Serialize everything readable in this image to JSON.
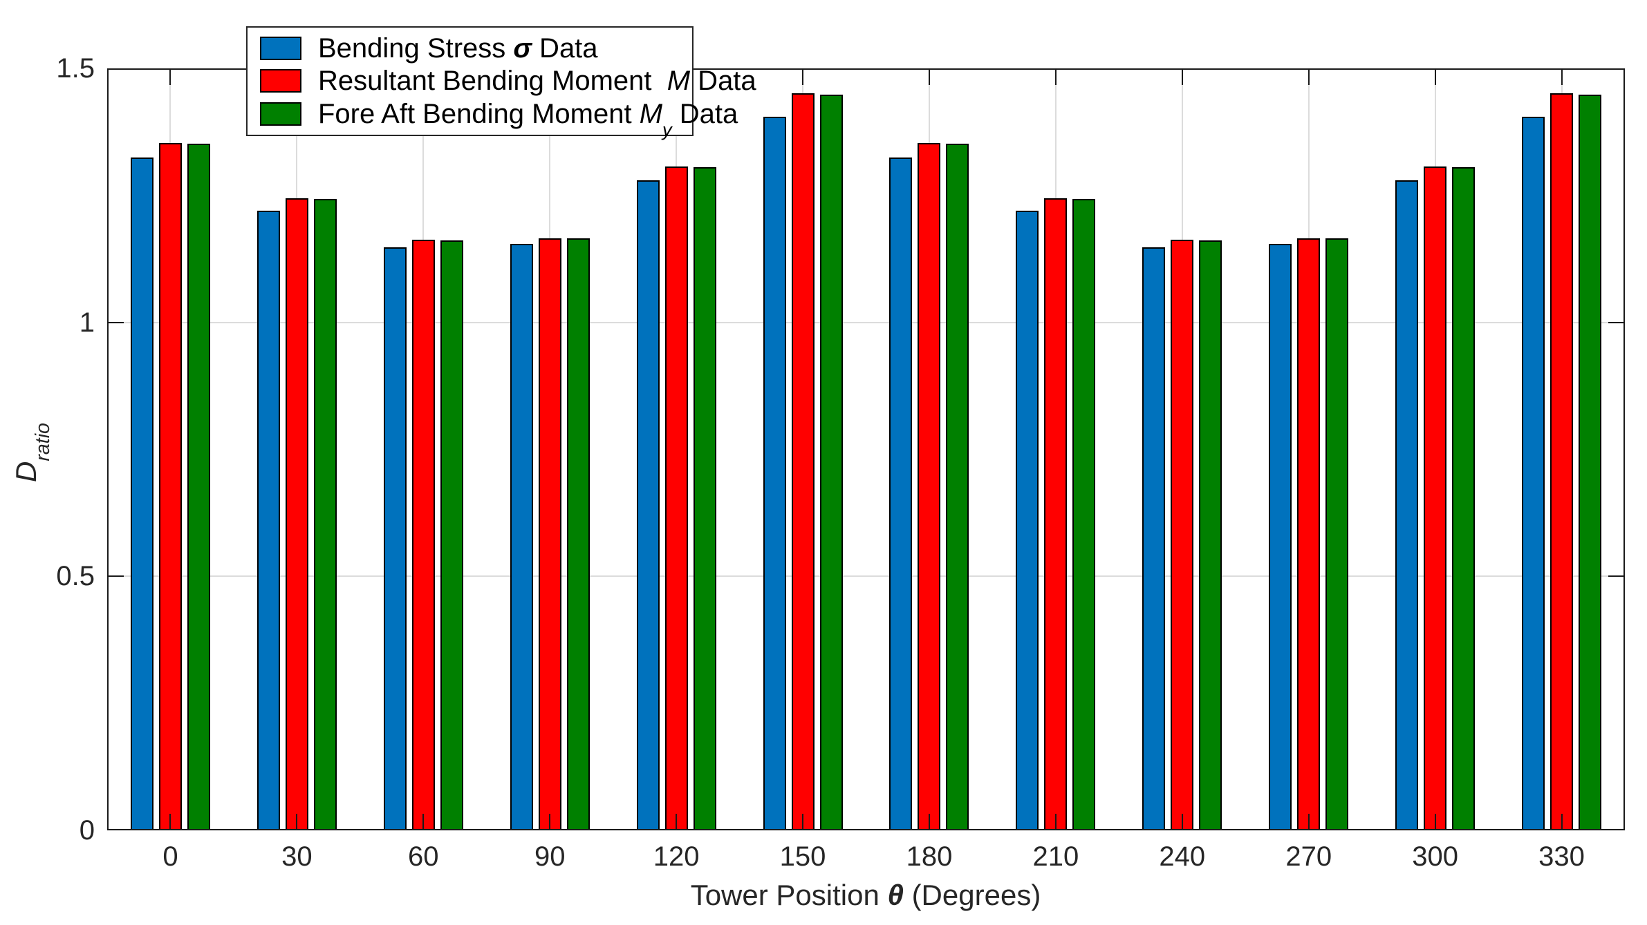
{
  "chart_data": {
    "type": "bar",
    "title": "",
    "xlabel": "Tower Position θ (Degrees)",
    "xlabel_parts": {
      "pre": "Tower Position ",
      "sym": "θ",
      "post": " (Degrees)"
    },
    "ylabel": "D_ratio",
    "ylabel_parts": {
      "main": "D",
      "sub": "ratio"
    },
    "categories": [
      "0",
      "30",
      "60",
      "90",
      "120",
      "150",
      "180",
      "210",
      "240",
      "270",
      "300",
      "330"
    ],
    "ylim": [
      0,
      1.5
    ],
    "yticks": [
      0,
      0.5,
      1,
      1.5
    ],
    "ytick_labels": [
      "0",
      "0.5",
      "1",
      "1.5"
    ],
    "grid": true,
    "legend_position": "top-left-inside",
    "series": [
      {
        "name": "Bending Stress σ Data",
        "color": "#0072BD",
        "legend_parts": {
          "pre": "Bending Stress ",
          "sym": "σ",
          "sym_bold": true,
          "sub": "",
          "post": " Data"
        },
        "values": [
          1.325,
          1.22,
          1.148,
          1.155,
          1.28,
          1.405,
          1.325,
          1.22,
          1.148,
          1.155,
          1.28,
          1.405
        ]
      },
      {
        "name": "Resultant Bending Moment M Data",
        "color": "#FF0000",
        "legend_parts": {
          "pre": "Resultant Bending Moment  ",
          "sym": "M",
          "sym_bold": false,
          "sub": "",
          "post": " Data"
        },
        "values": [
          1.353,
          1.244,
          1.163,
          1.166,
          1.307,
          1.451,
          1.353,
          1.244,
          1.163,
          1.166,
          1.307,
          1.451
        ]
      },
      {
        "name": "Fore Aft Bending Moment My Data",
        "color": "#008000",
        "legend_parts": {
          "pre": "Fore Aft Bending Moment ",
          "sym": "M",
          "sym_bold": false,
          "sub": "y",
          "post": " Data"
        },
        "values": [
          1.352,
          1.243,
          1.162,
          1.166,
          1.306,
          1.449,
          1.352,
          1.243,
          1.162,
          1.166,
          1.306,
          1.449
        ]
      }
    ],
    "colors": {
      "axis": "#1A1A1A",
      "tick_label": "#262626",
      "grid": "#DCDCDC",
      "bar_edge": "#000000",
      "legend_edge": "#262626",
      "background": "#FFFFFF"
    }
  }
}
